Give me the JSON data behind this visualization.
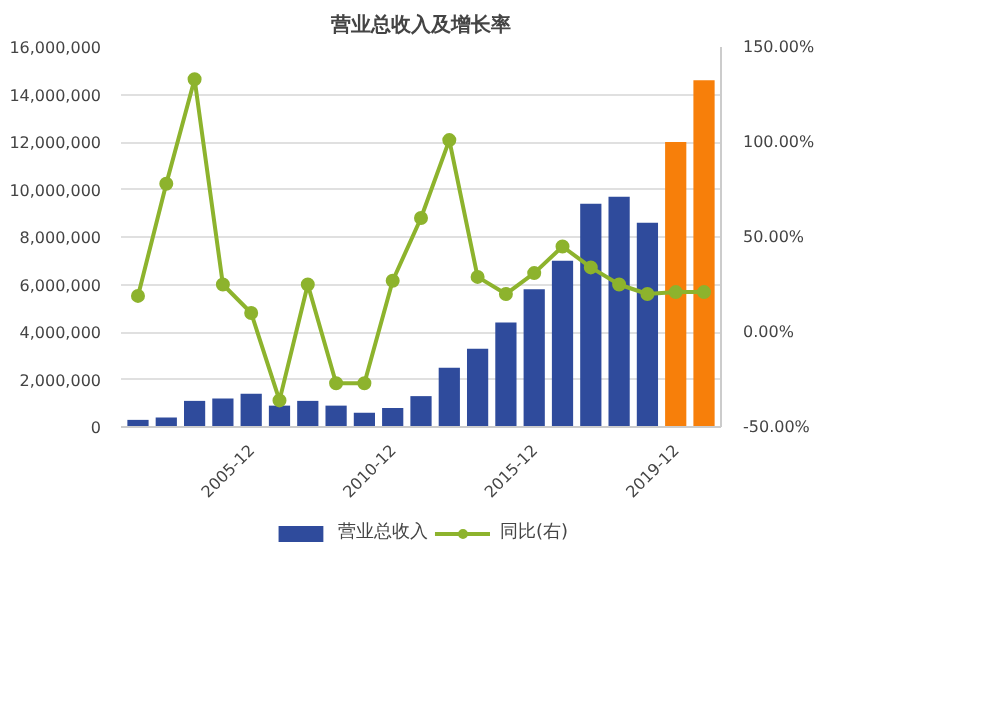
{
  "chart_data": {
    "type": "bar",
    "title": "营业总收入及增长率",
    "categories": [
      null,
      null,
      null,
      null,
      "2005-12",
      null,
      null,
      null,
      null,
      "2010-12",
      null,
      null,
      null,
      null,
      "2015-12",
      null,
      null,
      null,
      null,
      "2019-12",
      null
    ],
    "series": [
      {
        "name": "营业总收入",
        "color": "#2f4b9c",
        "colors": [
          "#2f4b9c",
          "#2f4b9c",
          "#2f4b9c",
          "#2f4b9c",
          "#2f4b9c",
          "#2f4b9c",
          "#2f4b9c",
          "#2f4b9c",
          "#2f4b9c",
          "#2f4b9c",
          "#2f4b9c",
          "#2f4b9c",
          "#2f4b9c",
          "#2f4b9c",
          "#2f4b9c",
          "#2f4b9c",
          "#2f4b9c",
          "#2f4b9c",
          "#2f4b9c",
          "#f77f0a",
          "#f77f0a"
        ],
        "values": [
          300000,
          400000,
          1100000,
          1200000,
          1400000,
          900000,
          1100000,
          900000,
          600000,
          800000,
          1300000,
          2500000,
          3300000,
          4400000,
          5800000,
          7000000,
          9400000,
          9700000,
          8600000,
          12000000,
          14600000
        ]
      },
      {
        "name": "同比(右)",
        "type": "line",
        "axis": "y2",
        "color": "#8db32d",
        "marker": "circle",
        "values": [
          19,
          78,
          133,
          25,
          10,
          -36,
          25,
          -27,
          -27,
          27,
          60,
          101,
          29,
          20,
          31,
          45,
          34,
          25,
          20,
          21,
          21
        ]
      }
    ],
    "ylim": [
      0,
      16000000
    ],
    "yticks": [
      {
        "value": 0,
        "label": "0"
      },
      {
        "value": 2000000,
        "label": "2,000,000"
      },
      {
        "value": 4000000,
        "label": "4,000,000"
      },
      {
        "value": 6000000,
        "label": "6,000,000"
      },
      {
        "value": 8000000,
        "label": "8,000,000"
      },
      {
        "value": 10000000,
        "label": "10,000,000"
      },
      {
        "value": 12000000,
        "label": "12,000,000"
      },
      {
        "value": 14000000,
        "label": "14,000,000"
      },
      {
        "value": 16000000,
        "label": "16,000,000"
      }
    ],
    "y2lim": [
      -50,
      150
    ],
    "y2ticks": [
      {
        "value": -50,
        "label": "-50.00%"
      },
      {
        "value": 0,
        "label": "0.00%"
      },
      {
        "value": 50,
        "label": "50.00%"
      },
      {
        "value": 100,
        "label": "100.00%"
      },
      {
        "value": 150,
        "label": "150.00%"
      }
    ],
    "grid": "y",
    "legend": "bottom"
  }
}
